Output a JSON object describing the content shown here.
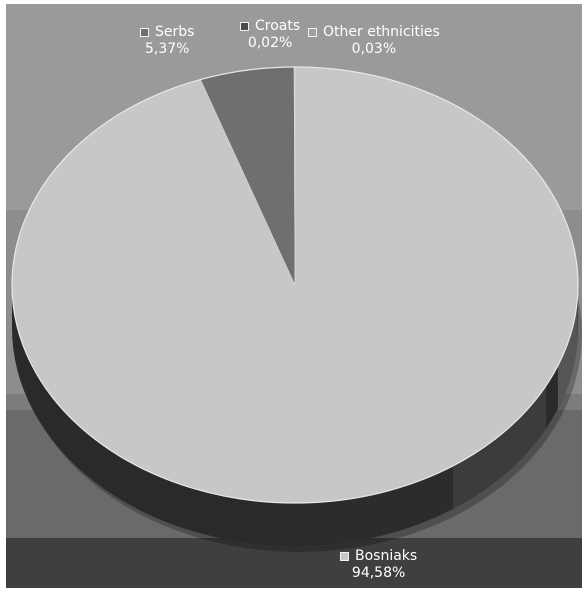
{
  "background_bands": [
    "#9a9a9a",
    "#8d8d8d",
    "#7c7c7c",
    "#6a6a6a",
    "#3f3f3f"
  ],
  "chart_data": {
    "type": "pie",
    "style": "3d",
    "title": "",
    "slices": [
      {
        "name": "Bosniaks",
        "label_value": "94,58%",
        "value": 94.58,
        "color": "#c7c7c7",
        "side_color": "#2a2a2a"
      },
      {
        "name": "Serbs",
        "label_value": "5,37%",
        "value": 5.37,
        "color": "#6f6f6f",
        "side_color": "#3a3a3a"
      },
      {
        "name": "Croats",
        "label_value": "0,02%",
        "value": 0.02,
        "color": "#4a4a4a",
        "side_color": "#333333"
      },
      {
        "name": "Other ethnicities",
        "label_value": "0,03%",
        "value": 0.03,
        "color": "#a0a0a0",
        "side_color": "#444444"
      }
    ],
    "legend": "data labels"
  }
}
